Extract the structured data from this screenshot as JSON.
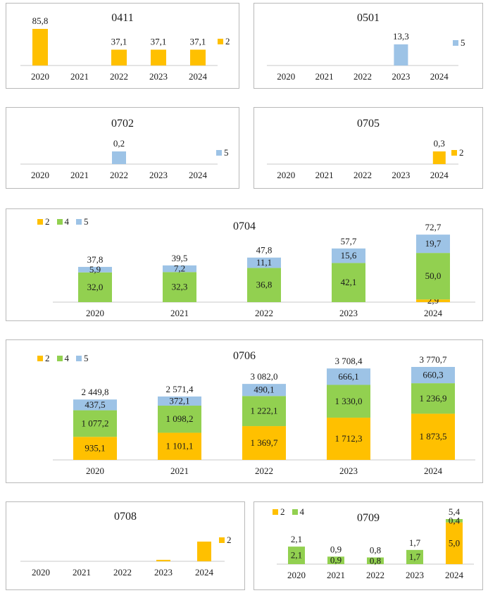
{
  "colors": {
    "2": "#FFC000",
    "4": "#92D050",
    "5": "#9DC3E6"
  },
  "chart_data": [
    {
      "id": "0411",
      "type": "bar",
      "title": "0411",
      "categories": [
        "2020",
        "2021",
        "2022",
        "2023",
        "2024"
      ],
      "series": [
        {
          "name": "2",
          "values": [
            85.8,
            null,
            37.1,
            37.1,
            37.1
          ],
          "labels": [
            "85,8",
            "",
            "37,1",
            "37,1",
            "37,1"
          ]
        }
      ],
      "ylim": [
        0,
        100
      ],
      "legend": "right"
    },
    {
      "id": "0501",
      "type": "bar",
      "title": "0501",
      "categories": [
        "2020",
        "2021",
        "2022",
        "2023",
        "2024"
      ],
      "series": [
        {
          "name": "5",
          "values": [
            null,
            null,
            null,
            13.3,
            null
          ],
          "labels": [
            "",
            "",
            "",
            "13,3",
            ""
          ]
        }
      ],
      "ylim": [
        0,
        15
      ],
      "legend": "right"
    },
    {
      "id": "0702",
      "type": "bar",
      "title": "0702",
      "categories": [
        "2020",
        "2021",
        "2022",
        "2023",
        "2024"
      ],
      "series": [
        {
          "name": "5",
          "values": [
            null,
            null,
            0.2,
            null,
            null
          ],
          "labels": [
            "",
            "",
            "0,2",
            "",
            ""
          ]
        }
      ],
      "ylim": [
        0,
        0.23
      ],
      "legend": "right"
    },
    {
      "id": "0705",
      "type": "bar",
      "title": "0705",
      "categories": [
        "2020",
        "2021",
        "2022",
        "2023",
        "2024"
      ],
      "series": [
        {
          "name": "2",
          "values": [
            null,
            null,
            null,
            null,
            0.3
          ],
          "labels": [
            "",
            "",
            "",
            "",
            "0,3"
          ]
        }
      ],
      "ylim": [
        0,
        0.35
      ],
      "legend": "right"
    },
    {
      "id": "0704",
      "type": "stacked-bar",
      "title": "0704",
      "categories": [
        "2020",
        "2021",
        "2022",
        "2023",
        "2024"
      ],
      "series": [
        {
          "name": "2",
          "values": [
            0,
            0,
            0,
            0,
            2.9
          ],
          "labels": [
            "",
            "",
            "",
            "",
            "2,9"
          ]
        },
        {
          "name": "4",
          "values": [
            32.0,
            32.3,
            36.8,
            42.1,
            50.0
          ],
          "labels": [
            "32,0",
            "32,3",
            "36,8",
            "42,1",
            "50,0"
          ]
        },
        {
          "name": "5",
          "values": [
            5.9,
            7.2,
            11.1,
            15.6,
            19.7
          ],
          "labels": [
            "5,9",
            "7,2",
            "11,1",
            "15,6",
            "19,7"
          ]
        }
      ],
      "totals": [
        37.8,
        39.5,
        47.8,
        57.7,
        72.7
      ],
      "total_labels": [
        "37,8",
        "39,5",
        "47,8",
        "57,7",
        "72,7"
      ],
      "ylim": [
        0,
        80
      ],
      "legend": "top-left"
    },
    {
      "id": "0706",
      "type": "stacked-bar",
      "title": "0706",
      "categories": [
        "2020",
        "2021",
        "2022",
        "2023",
        "2024"
      ],
      "series": [
        {
          "name": "2",
          "values": [
            935.1,
            1101.1,
            1369.7,
            1712.3,
            1873.5
          ],
          "labels": [
            "935,1",
            "1 101,1",
            "1 369,7",
            "1 712,3",
            "1 873,5"
          ]
        },
        {
          "name": "4",
          "values": [
            1077.2,
            1098.2,
            1222.1,
            1330.0,
            1236.9
          ],
          "labels": [
            "1 077,2",
            "1 098,2",
            "1 222,1",
            "1 330,0",
            "1 236,9"
          ]
        },
        {
          "name": "5",
          "values": [
            437.5,
            372.1,
            490.1,
            666.1,
            660.3
          ],
          "labels": [
            "437,5",
            "372,1",
            "490,1",
            "666,1",
            "660,3"
          ]
        }
      ],
      "totals": [
        2449.8,
        2571.4,
        3082.0,
        3708.4,
        3770.7
      ],
      "total_labels": [
        "2 449,8",
        "2 571,4",
        "3 082,0",
        "3 708,4",
        "3 770,7"
      ],
      "ylim": [
        0,
        4200
      ],
      "legend": "top-left"
    },
    {
      "id": "0708",
      "type": "bar",
      "title": "0708",
      "categories": [
        "2020",
        "2021",
        "2022",
        "2023",
        "2024"
      ],
      "series": [
        {
          "name": "2",
          "values": [
            null,
            null,
            null,
            0.6,
            8.0
          ],
          "labels": [
            "",
            "",
            "",
            "",
            ""
          ]
        }
      ],
      "ylim": [
        0,
        9.5
      ],
      "legend": "right"
    },
    {
      "id": "0709",
      "type": "stacked-bar",
      "title": "0709",
      "categories": [
        "2020",
        "2021",
        "2022",
        "2023",
        "2024"
      ],
      "series": [
        {
          "name": "2",
          "values": [
            0,
            0,
            0,
            0,
            5.0
          ],
          "labels": [
            "",
            "",
            "",
            "",
            "5,0"
          ]
        },
        {
          "name": "4",
          "values": [
            2.1,
            0.9,
            0.8,
            1.7,
            0.4
          ],
          "labels": [
            "2,1",
            "0,9",
            "0,8",
            "1,7",
            "0,4"
          ]
        }
      ],
      "totals": [
        2.1,
        0.9,
        0.8,
        1.7,
        5.4
      ],
      "total_labels": [
        "2,1",
        "0,9",
        "0,8",
        "1,7",
        "5,4"
      ],
      "ylim": [
        0,
        5.8
      ],
      "legend": "top-left"
    }
  ]
}
